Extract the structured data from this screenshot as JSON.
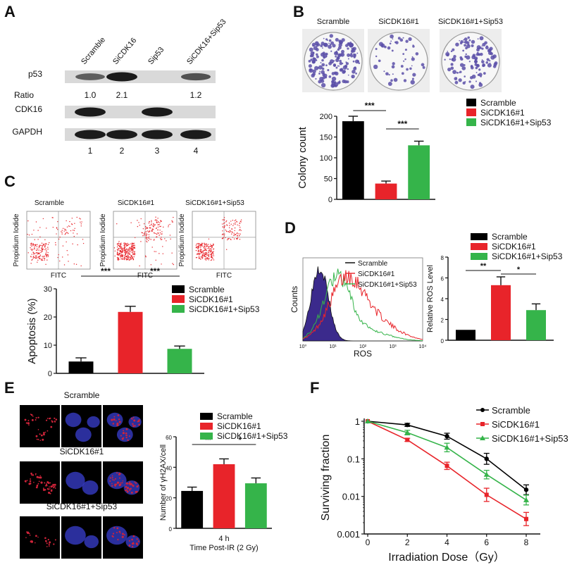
{
  "colors": {
    "scramble": "#000000",
    "sicdk16": "#e8242a",
    "sicdk16_sip53": "#35b44a",
    "plate_dot": "#5a4fa8",
    "dna_blue": "#3a3fd0",
    "foci_red": "#d0243a",
    "dot_plot": "#e8242a",
    "ros_fill": "#3b2a8c"
  },
  "panels": {
    "A": {
      "letter": "A",
      "lanes": [
        "Scramble",
        "SiCDK16",
        "Sip53",
        "SiCDK16+Sip53"
      ],
      "rows": [
        {
          "label": "p53",
          "bands": [
            0.45,
            1.0,
            0,
            0.55
          ]
        },
        {
          "label": "CDK16",
          "bands": [
            1.0,
            0,
            1.0,
            0
          ]
        },
        {
          "label": "GAPDH",
          "bands": [
            1.0,
            1.0,
            1.0,
            1.0
          ]
        }
      ],
      "ratio_label": "Ratio",
      "ratios": [
        "1.0",
        "2.1",
        "",
        "1.2"
      ],
      "lane_numbers": [
        "1",
        "2",
        "3",
        "4"
      ]
    },
    "B": {
      "letter": "B",
      "plate_labels": [
        "Scramble",
        "SiCDK16#1",
        "SiCDK16#1+Sip53"
      ],
      "plate_density": [
        1.0,
        0.3,
        0.7
      ],
      "sig": [
        "***",
        "***"
      ]
    },
    "C": {
      "letter": "C",
      "dot_titles": [
        "Scramble",
        "SiCDK16#1",
        "SiCDK16#1+Sip53"
      ],
      "dot_x": "FITC",
      "dot_y": "Propidium Iodide",
      "dot_counts": [
        220,
        420,
        300
      ],
      "sig": [
        "***",
        "***"
      ]
    },
    "D": {
      "letter": "D",
      "hist_x": "ROS",
      "hist_y": "Counts",
      "hist_legend": [
        "Scramble",
        "SiCDK16#1",
        "SiCDK16#1+Sip53"
      ],
      "hist_ticks": [
        "10⁰",
        "10¹",
        "10²",
        "10³",
        "10⁴"
      ],
      "sig": [
        "**",
        "*"
      ]
    },
    "E": {
      "letter": "E",
      "row_titles": [
        "Scramble",
        "SiCDK16#1",
        "SiCDK16#1+Sip53"
      ],
      "x_main": "4 h",
      "x_sub": "Time Post-IR (2 Gy)",
      "sig": [
        "**",
        "*"
      ]
    },
    "F": {
      "letter": "F"
    }
  },
  "chart_data": [
    {
      "id": "B",
      "type": "bar",
      "categories": [
        "Scramble",
        "SiCDK16#1",
        "SiCDK16#1+Sip53"
      ],
      "values": [
        188,
        38,
        130
      ],
      "errors": [
        12,
        6,
        10
      ],
      "ylabel": "Colony count",
      "ylim": [
        0,
        200
      ],
      "yticks": [
        0,
        50,
        100,
        150,
        200
      ],
      "legend": [
        "Scramble",
        "SiCDK16#1",
        "SiCDK16#1+Sip53"
      ]
    },
    {
      "id": "C",
      "type": "bar",
      "categories": [
        "Scramble",
        "SiCDK16#1",
        "SiCDK16#1+Sip53"
      ],
      "values": [
        4.2,
        21.8,
        8.7
      ],
      "errors": [
        1.3,
        2.0,
        1.0
      ],
      "ylabel": "Apoptosis (%)",
      "ylim": [
        0,
        30
      ],
      "yticks": [
        0,
        10,
        20,
        30
      ],
      "legend": [
        "Scramble",
        "SiCDK16#1",
        "SiCDK16#1+Sip53"
      ]
    },
    {
      "id": "D",
      "type": "bar",
      "categories": [
        "Scramble",
        "SiCDK16#1",
        "SiCDK16#1+Sip53"
      ],
      "values": [
        1.0,
        5.3,
        2.9
      ],
      "errors": [
        0,
        0.8,
        0.6
      ],
      "ylabel": "Relative ROS Level",
      "ylim": [
        0,
        8
      ],
      "yticks": [
        0,
        2,
        4,
        6,
        8
      ],
      "legend": [
        "Scramble",
        "SiCDK16#1",
        "SiCDK16#1+Sip53"
      ]
    },
    {
      "id": "E",
      "type": "bar",
      "categories": [
        "Scramble",
        "SiCDK16#1",
        "SiCDK16#1+Sip53"
      ],
      "values": [
        24.5,
        42,
        29.5
      ],
      "errors": [
        2.5,
        3.5,
        3.5
      ],
      "ylabel": "Number of γH2AX/cell",
      "ylim": [
        0,
        60
      ],
      "yticks": [
        0,
        20,
        40,
        60
      ],
      "legend": [
        "Scramble",
        "SiCDK16#1",
        "SiCDK16#1+Sip53"
      ]
    },
    {
      "id": "F",
      "type": "line",
      "x": [
        0,
        2,
        4,
        6,
        8
      ],
      "xlabel": "Irradiation Dose（Gy）",
      "ylabel": "Surviving fraction",
      "yscale": "log",
      "ylim": [
        0.001,
        1
      ],
      "yticks": [
        1,
        0.1,
        0.01,
        0.001
      ],
      "ytick_labels": [
        "1",
        "0.1",
        "0.01",
        "0.001"
      ],
      "xticks": [
        0,
        2,
        4,
        6,
        8
      ],
      "series": [
        {
          "name": "Scramble",
          "values": [
            1,
            0.8,
            0.4,
            0.1,
            0.015
          ],
          "errors_rel": [
            0.1,
            0.1,
            0.2,
            0.4,
            0.35
          ],
          "marker": "circle"
        },
        {
          "name": "SiCDK16#1",
          "values": [
            1,
            0.32,
            0.065,
            0.011,
            0.0025
          ],
          "errors_rel": [
            0.1,
            0.1,
            0.25,
            0.5,
            0.5
          ],
          "marker": "square"
        },
        {
          "name": "SiCDK16#1+Sip53",
          "values": [
            1,
            0.5,
            0.2,
            0.038,
            0.008
          ],
          "errors_rel": [
            0.1,
            0.15,
            0.3,
            0.3,
            0.35
          ],
          "marker": "triangle"
        }
      ]
    }
  ]
}
